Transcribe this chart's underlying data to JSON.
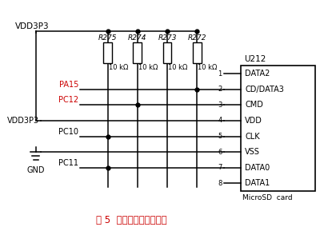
{
  "title": "图 5  数据存储电路原理图",
  "title_color": "#cc0000",
  "bg_color": "#ffffff",
  "ic_label": "U212",
  "ic_pins": [
    "DATA2",
    "CD/DATA3",
    "CMD",
    "VDD",
    "CLK",
    "VSS",
    "DATA0",
    "DATA1"
  ],
  "ic_pin_numbers": [
    "1",
    "2",
    "3",
    "4",
    "5",
    "6",
    "7",
    "8"
  ],
  "ic_bottom_label": "MicroSD  card",
  "resistors": [
    "R275",
    "R274",
    "R273",
    "R272"
  ],
  "resistor_values": [
    "10 kΩ",
    "10 kΩ",
    "10 kΩ",
    "10 kΩ"
  ],
  "vdd_top_label": "VDD3P3",
  "vdd_mid_label": "VDD3P3",
  "gnd_label": "GND",
  "port_labels": [
    "PA15",
    "PC12",
    "PC10",
    "PC11"
  ]
}
